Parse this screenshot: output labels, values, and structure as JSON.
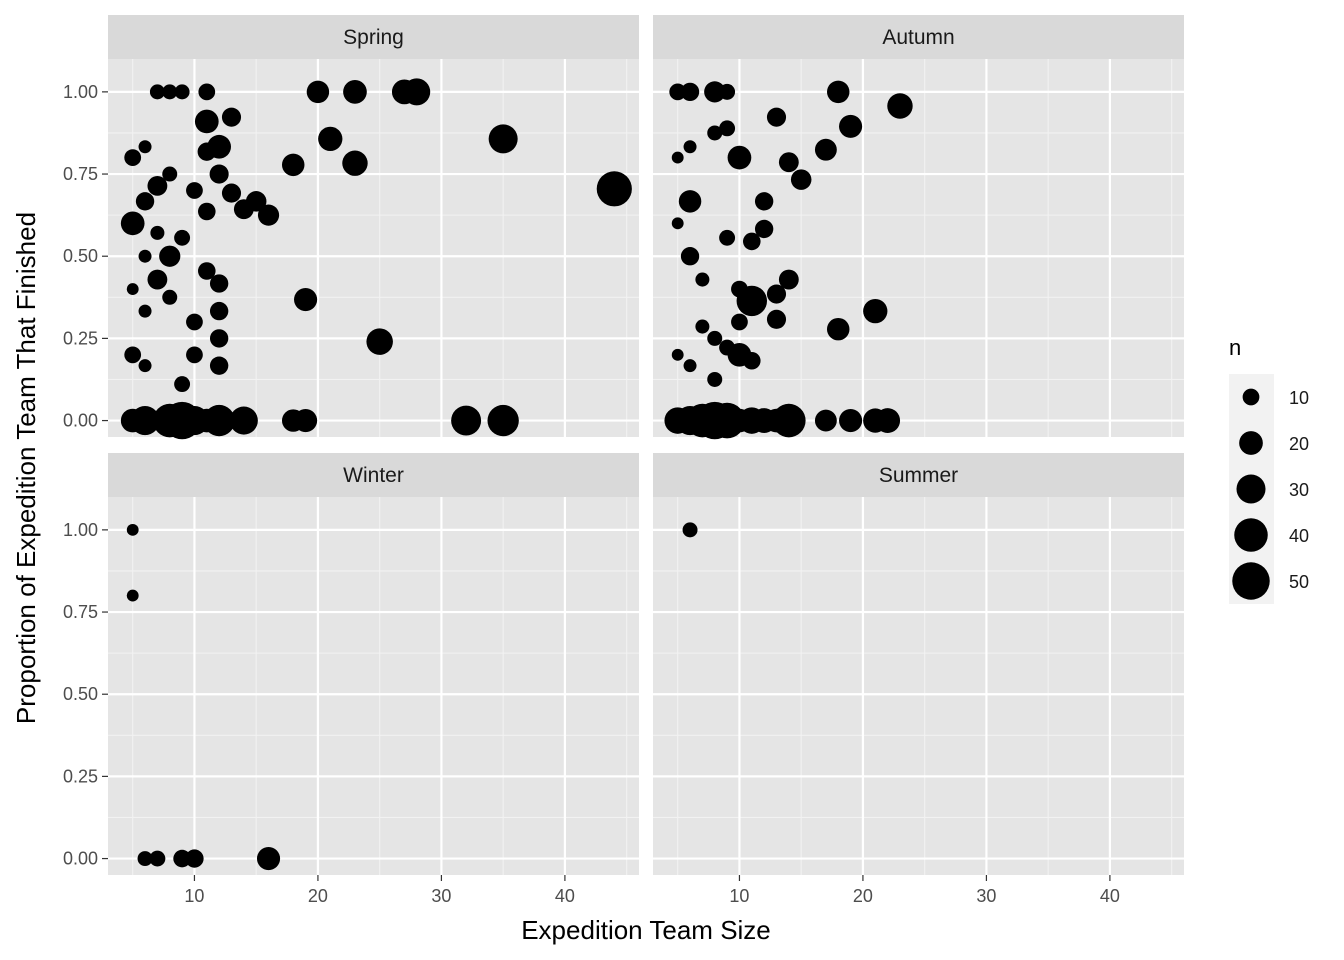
{
  "chart_data": {
    "type": "scatter",
    "xlabel": "Expedition Team Size",
    "ylabel": "Proportion of Expedition Team That Finished",
    "xlim": [
      3,
      46
    ],
    "ylim": [
      -0.05,
      1.1
    ],
    "x_ticks": [
      10,
      20,
      30,
      40
    ],
    "y_ticks": [
      0,
      0.25,
      0.5,
      0.75,
      1.0
    ],
    "y_tick_labels": [
      "0.00",
      "0.25",
      "0.50",
      "0.75",
      "1.00"
    ],
    "grid": true,
    "legend": {
      "title": "n",
      "position": "right",
      "entries": [
        10,
        20,
        30,
        40,
        50
      ],
      "entry_labels": [
        "10",
        "20",
        "30",
        "40",
        "50"
      ]
    },
    "point_color": "#000000",
    "panel_background": "#e5e5e5",
    "strip_background": "#d9d9d9",
    "facets": [
      {
        "label": "Spring",
        "points": [
          {
            "x": 7,
            "y": 1.0,
            "n": 8
          },
          {
            "x": 8,
            "y": 1.0,
            "n": 8
          },
          {
            "x": 9,
            "y": 1.0,
            "n": 8
          },
          {
            "x": 11,
            "y": 1.0,
            "n": 10
          },
          {
            "x": 20,
            "y": 1.0,
            "n": 18
          },
          {
            "x": 23,
            "y": 1.0,
            "n": 20
          },
          {
            "x": 27,
            "y": 1.0,
            "n": 22
          },
          {
            "x": 28,
            "y": 1.0,
            "n": 26
          },
          {
            "x": 11,
            "y": 0.91,
            "n": 20
          },
          {
            "x": 13,
            "y": 0.923,
            "n": 13
          },
          {
            "x": 21,
            "y": 0.857,
            "n": 21
          },
          {
            "x": 35,
            "y": 0.857,
            "n": 30
          },
          {
            "x": 6,
            "y": 0.833,
            "n": 6
          },
          {
            "x": 11,
            "y": 0.818,
            "n": 12
          },
          {
            "x": 12,
            "y": 0.833,
            "n": 20
          },
          {
            "x": 5,
            "y": 0.8,
            "n": 10
          },
          {
            "x": 18,
            "y": 0.778,
            "n": 18
          },
          {
            "x": 23,
            "y": 0.783,
            "n": 23
          },
          {
            "x": 8,
            "y": 0.75,
            "n": 8
          },
          {
            "x": 12,
            "y": 0.75,
            "n": 13
          },
          {
            "x": 7,
            "y": 0.714,
            "n": 14
          },
          {
            "x": 10,
            "y": 0.7,
            "n": 10
          },
          {
            "x": 44,
            "y": 0.705,
            "n": 44
          },
          {
            "x": 13,
            "y": 0.692,
            "n": 13
          },
          {
            "x": 6,
            "y": 0.667,
            "n": 12
          },
          {
            "x": 15,
            "y": 0.667,
            "n": 15
          },
          {
            "x": 14,
            "y": 0.643,
            "n": 14
          },
          {
            "x": 11,
            "y": 0.636,
            "n": 11
          },
          {
            "x": 16,
            "y": 0.625,
            "n": 16
          },
          {
            "x": 5,
            "y": 0.6,
            "n": 20
          },
          {
            "x": 7,
            "y": 0.571,
            "n": 7
          },
          {
            "x": 9,
            "y": 0.556,
            "n": 9
          },
          {
            "x": 6,
            "y": 0.5,
            "n": 6
          },
          {
            "x": 8,
            "y": 0.5,
            "n": 16
          },
          {
            "x": 11,
            "y": 0.455,
            "n": 11
          },
          {
            "x": 7,
            "y": 0.429,
            "n": 14
          },
          {
            "x": 12,
            "y": 0.417,
            "n": 12
          },
          {
            "x": 5,
            "y": 0.4,
            "n": 5
          },
          {
            "x": 8,
            "y": 0.375,
            "n": 8
          },
          {
            "x": 19,
            "y": 0.368,
            "n": 19
          },
          {
            "x": 6,
            "y": 0.333,
            "n": 6
          },
          {
            "x": 12,
            "y": 0.333,
            "n": 12
          },
          {
            "x": 10,
            "y": 0.3,
            "n": 10
          },
          {
            "x": 12,
            "y": 0.25,
            "n": 12
          },
          {
            "x": 25,
            "y": 0.24,
            "n": 25
          },
          {
            "x": 5,
            "y": 0.2,
            "n": 10
          },
          {
            "x": 10,
            "y": 0.2,
            "n": 10
          },
          {
            "x": 6,
            "y": 0.167,
            "n": 6
          },
          {
            "x": 12,
            "y": 0.167,
            "n": 12
          },
          {
            "x": 9,
            "y": 0.111,
            "n": 9
          },
          {
            "x": 5,
            "y": 0.0,
            "n": 20
          },
          {
            "x": 6,
            "y": 0.0,
            "n": 30
          },
          {
            "x": 8,
            "y": 0.0,
            "n": 40
          },
          {
            "x": 9,
            "y": 0.0,
            "n": 50
          },
          {
            "x": 10,
            "y": 0.0,
            "n": 30
          },
          {
            "x": 11,
            "y": 0.0,
            "n": 20
          },
          {
            "x": 12,
            "y": 0.0,
            "n": 35
          },
          {
            "x": 14,
            "y": 0.0,
            "n": 28
          },
          {
            "x": 18,
            "y": 0.0,
            "n": 18
          },
          {
            "x": 19,
            "y": 0.0,
            "n": 19
          },
          {
            "x": 32,
            "y": 0.0,
            "n": 32
          },
          {
            "x": 35,
            "y": 0.0,
            "n": 35
          }
        ]
      },
      {
        "label": "Autumn",
        "points": [
          {
            "x": 5,
            "y": 1.0,
            "n": 10
          },
          {
            "x": 6,
            "y": 1.0,
            "n": 12
          },
          {
            "x": 8,
            "y": 1.0,
            "n": 16
          },
          {
            "x": 9,
            "y": 1.0,
            "n": 9
          },
          {
            "x": 18,
            "y": 1.0,
            "n": 18
          },
          {
            "x": 23,
            "y": 0.957,
            "n": 23
          },
          {
            "x": 13,
            "y": 0.923,
            "n": 13
          },
          {
            "x": 19,
            "y": 0.895,
            "n": 19
          },
          {
            "x": 9,
            "y": 0.889,
            "n": 9
          },
          {
            "x": 8,
            "y": 0.875,
            "n": 8
          },
          {
            "x": 6,
            "y": 0.833,
            "n": 6
          },
          {
            "x": 17,
            "y": 0.824,
            "n": 17
          },
          {
            "x": 5,
            "y": 0.8,
            "n": 5
          },
          {
            "x": 10,
            "y": 0.8,
            "n": 20
          },
          {
            "x": 14,
            "y": 0.786,
            "n": 14
          },
          {
            "x": 15,
            "y": 0.733,
            "n": 15
          },
          {
            "x": 6,
            "y": 0.667,
            "n": 18
          },
          {
            "x": 12,
            "y": 0.667,
            "n": 12
          },
          {
            "x": 5,
            "y": 0.6,
            "n": 5
          },
          {
            "x": 12,
            "y": 0.583,
            "n": 12
          },
          {
            "x": 9,
            "y": 0.556,
            "n": 9
          },
          {
            "x": 11,
            "y": 0.545,
            "n": 11
          },
          {
            "x": 6,
            "y": 0.5,
            "n": 12
          },
          {
            "x": 7,
            "y": 0.429,
            "n": 7
          },
          {
            "x": 14,
            "y": 0.429,
            "n": 14
          },
          {
            "x": 10,
            "y": 0.4,
            "n": 10
          },
          {
            "x": 13,
            "y": 0.385,
            "n": 13
          },
          {
            "x": 11,
            "y": 0.364,
            "n": 33
          },
          {
            "x": 21,
            "y": 0.333,
            "n": 21
          },
          {
            "x": 13,
            "y": 0.308,
            "n": 13
          },
          {
            "x": 10,
            "y": 0.3,
            "n": 10
          },
          {
            "x": 7,
            "y": 0.286,
            "n": 7
          },
          {
            "x": 18,
            "y": 0.278,
            "n": 18
          },
          {
            "x": 8,
            "y": 0.25,
            "n": 8
          },
          {
            "x": 9,
            "y": 0.222,
            "n": 9
          },
          {
            "x": 5,
            "y": 0.2,
            "n": 5
          },
          {
            "x": 10,
            "y": 0.2,
            "n": 20
          },
          {
            "x": 11,
            "y": 0.182,
            "n": 11
          },
          {
            "x": 6,
            "y": 0.167,
            "n": 6
          },
          {
            "x": 8,
            "y": 0.125,
            "n": 8
          },
          {
            "x": 5,
            "y": 0.0,
            "n": 25
          },
          {
            "x": 6,
            "y": 0.0,
            "n": 30
          },
          {
            "x": 7,
            "y": 0.0,
            "n": 40
          },
          {
            "x": 8,
            "y": 0.0,
            "n": 50
          },
          {
            "x": 9,
            "y": 0.0,
            "n": 45
          },
          {
            "x": 10,
            "y": 0.0,
            "n": 20
          },
          {
            "x": 11,
            "y": 0.0,
            "n": 25
          },
          {
            "x": 12,
            "y": 0.0,
            "n": 22
          },
          {
            "x": 13,
            "y": 0.0,
            "n": 20
          },
          {
            "x": 14,
            "y": 0.0,
            "n": 40
          },
          {
            "x": 17,
            "y": 0.0,
            "n": 17
          },
          {
            "x": 19,
            "y": 0.0,
            "n": 19
          },
          {
            "x": 21,
            "y": 0.0,
            "n": 21
          },
          {
            "x": 22,
            "y": 0.0,
            "n": 22
          }
        ]
      },
      {
        "label": "Winter",
        "points": [
          {
            "x": 5,
            "y": 1.0,
            "n": 5
          },
          {
            "x": 5,
            "y": 0.8,
            "n": 5
          },
          {
            "x": 6,
            "y": 0.0,
            "n": 8
          },
          {
            "x": 7,
            "y": 0.0,
            "n": 9
          },
          {
            "x": 9,
            "y": 0.0,
            "n": 11
          },
          {
            "x": 10,
            "y": 0.0,
            "n": 12
          },
          {
            "x": 16,
            "y": 0.0,
            "n": 19
          }
        ]
      },
      {
        "label": "Summer",
        "points": [
          {
            "x": 6,
            "y": 1.0,
            "n": 8
          }
        ]
      }
    ]
  }
}
